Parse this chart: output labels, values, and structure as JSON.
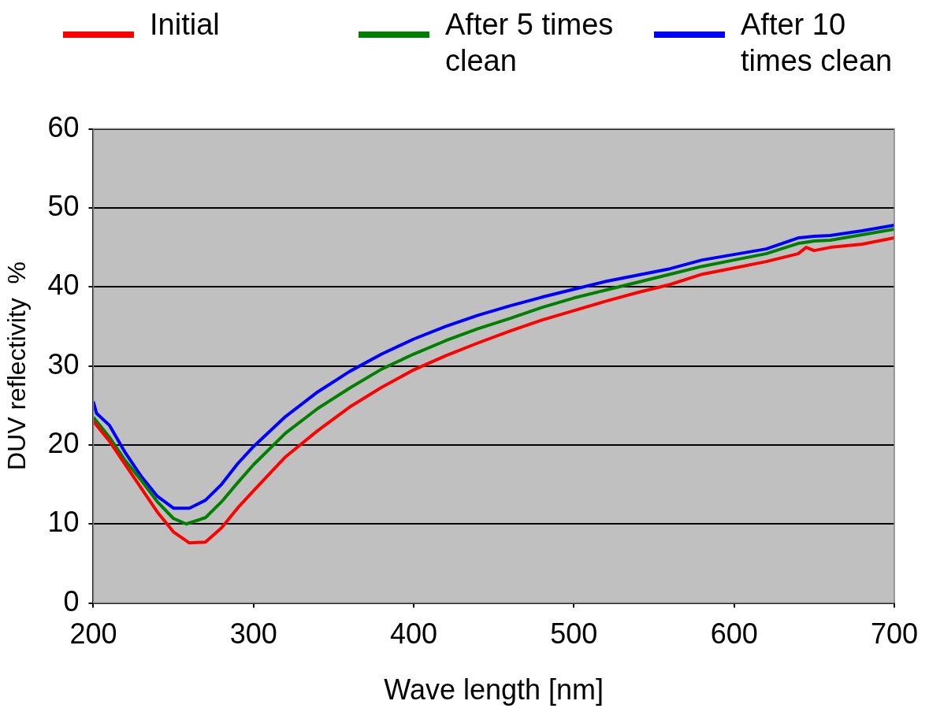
{
  "chart_data": {
    "type": "line",
    "xlabel": "Wave length [nm]",
    "ylabel": "DUV reflectivity  %",
    "xlim": [
      200,
      700
    ],
    "xticks": [
      200,
      300,
      400,
      500,
      600,
      700
    ],
    "ylim": [
      0,
      60
    ],
    "yticks": [
      0,
      10,
      20,
      30,
      40,
      50,
      60
    ],
    "grid": "y",
    "legend": "top",
    "series": [
      {
        "name": "Initial",
        "color": "#ff0000",
        "x": [
          200,
          210,
          220,
          230,
          240,
          250,
          260,
          270,
          280,
          290,
          300,
          320,
          340,
          360,
          380,
          400,
          420,
          440,
          460,
          480,
          500,
          520,
          540,
          560,
          580,
          600,
          620,
          640,
          645,
          650,
          660,
          680,
          700
        ],
        "values": [
          23,
          20.5,
          17.5,
          14.5,
          11.5,
          9,
          7.6,
          7.7,
          9.5,
          12,
          14.2,
          18.5,
          21.8,
          24.8,
          27.3,
          29.5,
          31.3,
          32.9,
          34.4,
          35.8,
          37,
          38.2,
          39.3,
          40.3,
          41.6,
          42.4,
          43.2,
          44.2,
          45,
          44.6,
          45,
          45.4,
          46.2
        ]
      },
      {
        "name": "After 5 times clean",
        "color": "#008000",
        "x": [
          200,
          210,
          220,
          230,
          240,
          250,
          258,
          270,
          280,
          290,
          300,
          320,
          340,
          360,
          380,
          400,
          420,
          440,
          460,
          480,
          500,
          520,
          540,
          560,
          580,
          600,
          620,
          640,
          650,
          660,
          680,
          700
        ],
        "values": [
          23.5,
          21,
          18,
          15.5,
          12.8,
          10.7,
          10,
          10.8,
          12.8,
          15.2,
          17.5,
          21.5,
          24.6,
          27.2,
          29.6,
          31.5,
          33.2,
          34.7,
          36,
          37.4,
          38.6,
          39.6,
          40.6,
          41.6,
          42.6,
          43.4,
          44.2,
          45.5,
          45.8,
          45.9,
          46.6,
          47.3
        ]
      },
      {
        "name": "After 10 times clean",
        "color": "#0000ff",
        "x": [
          200,
          202,
          210,
          220,
          230,
          240,
          250,
          260,
          270,
          280,
          290,
          300,
          320,
          340,
          360,
          380,
          400,
          420,
          440,
          460,
          480,
          500,
          520,
          540,
          560,
          580,
          600,
          620,
          640,
          650,
          660,
          680,
          700
        ],
        "values": [
          25.5,
          24,
          22.5,
          19,
          16,
          13.5,
          12,
          12,
          13,
          15,
          17.6,
          19.8,
          23.6,
          26.7,
          29.3,
          31.5,
          33.4,
          35,
          36.4,
          37.6,
          38.7,
          39.7,
          40.7,
          41.5,
          42.3,
          43.4,
          44.1,
          44.8,
          46.2,
          46.4,
          46.5,
          47.1,
          47.8
        ]
      }
    ]
  }
}
